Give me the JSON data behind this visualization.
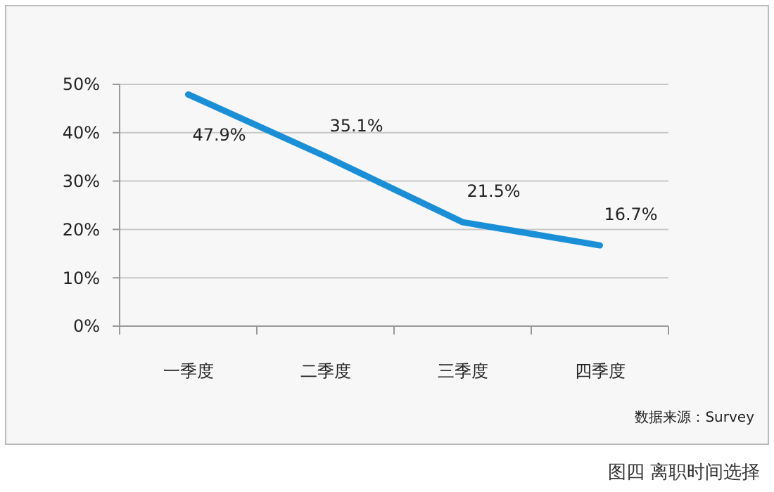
{
  "chart_data": {
    "type": "line",
    "categories": [
      "一季度",
      "二季度",
      "三季度",
      "四季度"
    ],
    "series": [
      {
        "color": "#1a8fd8",
        "values": [
          47.9,
          35.1,
          21.5,
          16.7
        ],
        "value_labels": [
          "47.9%",
          "35.1%",
          "21.5%",
          "16.7%"
        ]
      }
    ],
    "ylim": [
      0,
      50
    ],
    "yticks": [
      {
        "value": 0,
        "label": "0%"
      },
      {
        "value": 10,
        "label": "10%"
      },
      {
        "value": 20,
        "label": "20%"
      },
      {
        "value": 30,
        "label": "30%"
      },
      {
        "value": 40,
        "label": "40%"
      },
      {
        "value": 50,
        "label": "50%"
      }
    ],
    "grid": "y",
    "marker": "none",
    "line_style": "solid",
    "annotations": [
      "数据来源：Survey",
      "图四 离职时间选择"
    ]
  }
}
